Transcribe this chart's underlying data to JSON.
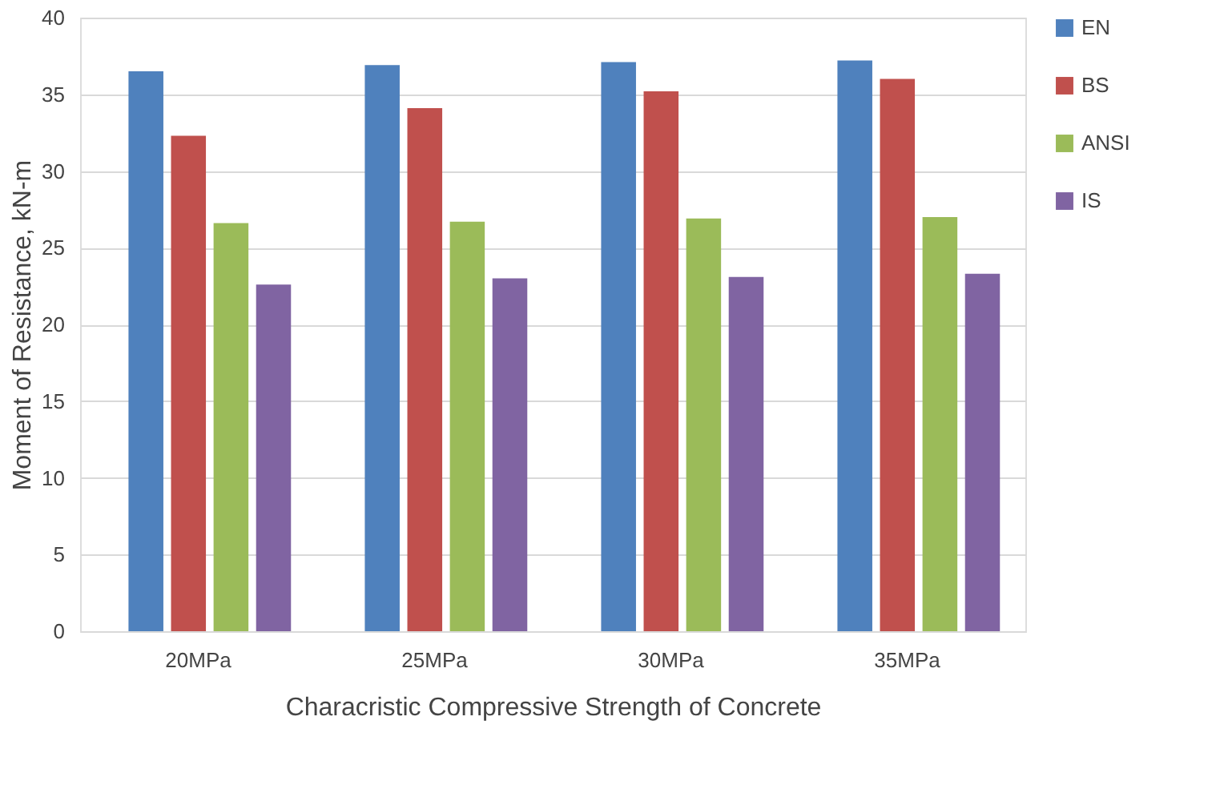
{
  "chart_data": {
    "type": "bar",
    "xlabel": "Characristic Compressive Strength of Concrete",
    "ylabel": "Moment of Resistance, kN-m",
    "categories": [
      "20MPa",
      "25MPa",
      "30MPa",
      "35MPa"
    ],
    "series": [
      {
        "name": "EN",
        "color": "#4f81bd",
        "values": [
          36.5,
          36.9,
          37.1,
          37.2
        ]
      },
      {
        "name": "BS",
        "color": "#c0504d",
        "values": [
          32.3,
          34.1,
          35.2,
          36.0
        ]
      },
      {
        "name": "ANSI",
        "color": "#9bbb59",
        "values": [
          26.6,
          26.7,
          26.9,
          27.0
        ]
      },
      {
        "name": "IS",
        "color": "#8064a2",
        "values": [
          22.6,
          23.0,
          23.1,
          23.3
        ]
      }
    ],
    "ylim": [
      0,
      40
    ],
    "yticks": [
      0,
      5,
      10,
      15,
      20,
      25,
      30,
      35,
      40
    ],
    "grid": "y",
    "legend": "right"
  }
}
